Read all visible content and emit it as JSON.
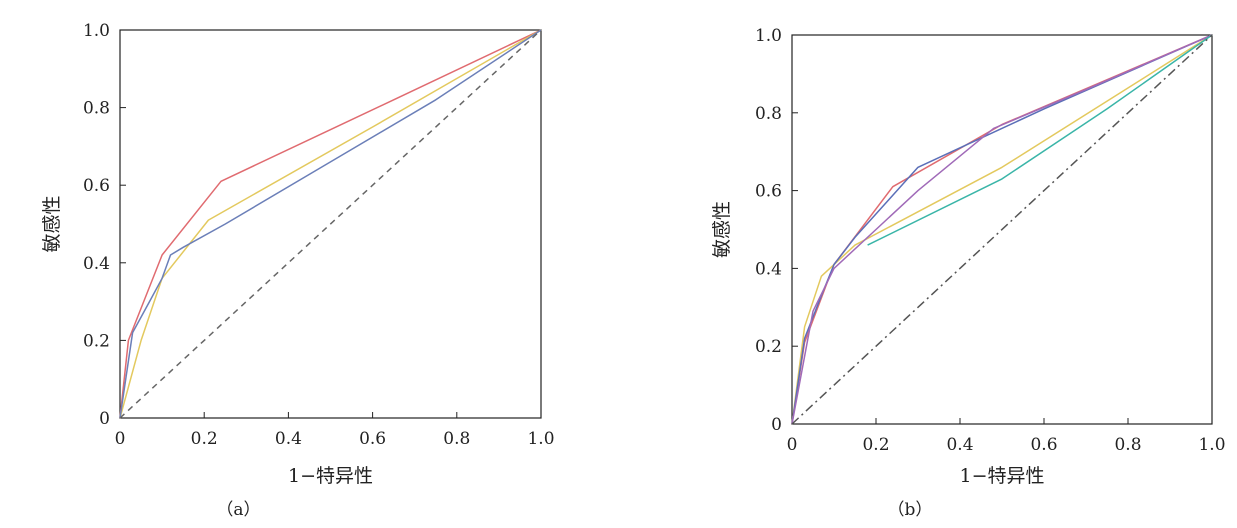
{
  "chart_data": [
    {
      "type": "line",
      "panel_label": "（a）",
      "xlabel": "1−特异性",
      "ylabel": "敏感性",
      "xlim": [
        0,
        1
      ],
      "ylim": [
        0,
        1
      ],
      "x_ticks": [
        0,
        0.2,
        0.4,
        0.6,
        0.8,
        1.0
      ],
      "y_ticks": [
        0,
        0.2,
        0.4,
        0.6,
        0.8,
        1.0
      ],
      "x_tick_labels": [
        "0",
        "0.2",
        "0.4",
        "0.6",
        "0.8",
        "1.0"
      ],
      "y_tick_labels": [
        "0",
        "0.2",
        "0.4",
        "0.6",
        "0.8",
        "1.0"
      ],
      "grid": false,
      "series": [
        {
          "color": "#e06b70",
          "dash": "",
          "x": [
            0,
            0.02,
            0.1,
            0.24,
            0.65,
            1.0
          ],
          "y": [
            0,
            0.2,
            0.42,
            0.61,
            0.82,
            1.0
          ]
        },
        {
          "color": "#e3c95e",
          "dash": "",
          "x": [
            0,
            0.05,
            0.1,
            0.21,
            0.6,
            1.0
          ],
          "y": [
            0,
            0.2,
            0.36,
            0.51,
            0.75,
            1.0
          ]
        },
        {
          "color": "#6b7fb8",
          "dash": "",
          "x": [
            0,
            0.03,
            0.07,
            0.1,
            0.12,
            0.15,
            0.25,
            0.5,
            0.75,
            1.0
          ],
          "y": [
            0,
            0.22,
            0.3,
            0.36,
            0.42,
            0.44,
            0.5,
            0.66,
            0.82,
            1.0
          ]
        },
        {
          "color": "#666666",
          "dash": "6 5",
          "x": [
            0,
            1.0
          ],
          "y": [
            0,
            1.0
          ]
        }
      ]
    },
    {
      "type": "line",
      "panel_label": "（b）",
      "xlabel": "1−特异性",
      "ylabel": "敏感性",
      "xlim": [
        0,
        1
      ],
      "ylim": [
        0,
        1
      ],
      "x_ticks": [
        0,
        0.2,
        0.4,
        0.6,
        0.8,
        1.0
      ],
      "y_ticks": [
        0,
        0.2,
        0.4,
        0.6,
        0.8,
        1.0
      ],
      "x_tick_labels": [
        "0",
        "0.2",
        "0.4",
        "0.6",
        "0.8",
        "1.0"
      ],
      "y_tick_labels": [
        "0",
        "0.2",
        "0.4",
        "0.6",
        "0.8",
        "1.0"
      ],
      "grid": false,
      "series": [
        {
          "color": "#e06b70",
          "dash": "",
          "x": [
            0,
            0.03,
            0.1,
            0.24,
            0.5,
            1.0
          ],
          "y": [
            0,
            0.21,
            0.41,
            0.61,
            0.77,
            1.0
          ]
        },
        {
          "color": "#e3c95e",
          "dash": "",
          "x": [
            0,
            0.03,
            0.07,
            0.15,
            0.5,
            1.0
          ],
          "y": [
            0,
            0.25,
            0.38,
            0.46,
            0.66,
            1.0
          ]
        },
        {
          "color": "#5b6fb8",
          "dash": "",
          "x": [
            0,
            0.03,
            0.07,
            0.1,
            0.15,
            0.3,
            0.6,
            1.0
          ],
          "y": [
            0,
            0.22,
            0.33,
            0.41,
            0.48,
            0.66,
            0.81,
            1.0
          ]
        },
        {
          "color": "#a06ab8",
          "dash": "",
          "x": [
            0,
            0.05,
            0.1,
            0.2,
            0.3,
            0.48,
            0.7,
            1.0
          ],
          "y": [
            0,
            0.29,
            0.4,
            0.5,
            0.6,
            0.76,
            0.86,
            1.0
          ]
        },
        {
          "color": "#3ab5a8",
          "dash": "",
          "x": [
            0.18,
            0.5,
            0.75,
            1.0
          ],
          "y": [
            0.46,
            0.63,
            0.81,
            1.0
          ]
        },
        {
          "color": "#555555",
          "dash": "9 4 2 4",
          "x": [
            0,
            1.0
          ],
          "y": [
            0,
            1.0
          ]
        }
      ]
    }
  ]
}
